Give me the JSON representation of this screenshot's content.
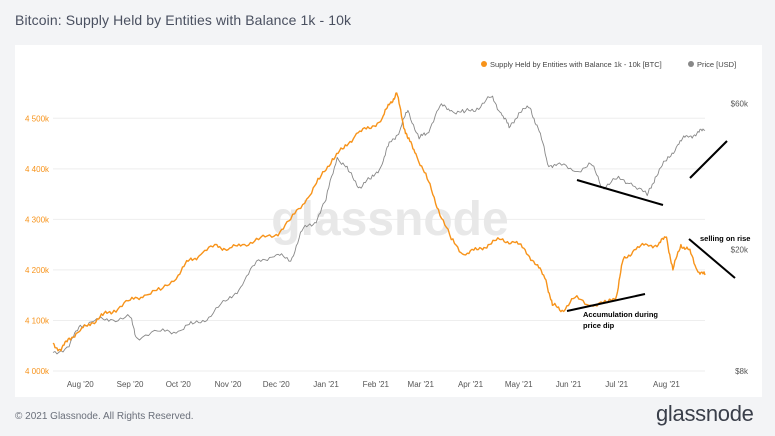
{
  "title": "Bitcoin: Supply Held by Entities with Balance 1k - 10k",
  "footer": "© 2021 Glassnode. All Rights Reserved.",
  "brand": "glassnode",
  "watermark": "glassnode",
  "colors": {
    "supply": "#f7931a",
    "price": "#888888",
    "grid": "#eeeeee",
    "annotation": "#000000"
  },
  "chart_data": {
    "type": "line",
    "title": "Bitcoin: Supply Held by Entities with Balance 1k - 10k",
    "legend_position": "top-right",
    "x_ticks": [
      "Aug '20",
      "Sep '20",
      "Oct '20",
      "Nov '20",
      "Dec '20",
      "Jan '21",
      "Feb '21",
      "Mar '21",
      "Apr '21",
      "May '21",
      "Jun '21",
      "Jul '21",
      "Aug '21"
    ],
    "x_range": [
      "2020-07-15",
      "2021-08-25"
    ],
    "y_left": {
      "label": "",
      "ticks": [
        "4 000k",
        "4 100k",
        "4 200k",
        "4 300k",
        "4 400k",
        "4 500k"
      ],
      "range": [
        4000000,
        4550000
      ]
    },
    "y_right": {
      "label": "",
      "scale": "log",
      "ticks": [
        "$8k",
        "$20k",
        "$60k"
      ],
      "range": [
        8000,
        65000
      ]
    },
    "grid": true,
    "series": [
      {
        "name": "Supply Held by Entities with Balance 1k - 10k [BTC]",
        "axis": "left",
        "x": [
          "2020-07-15",
          "2020-07-20",
          "2020-07-25",
          "2020-08-01",
          "2020-08-08",
          "2020-08-15",
          "2020-08-22",
          "2020-09-01",
          "2020-09-10",
          "2020-09-20",
          "2020-10-01",
          "2020-10-08",
          "2020-10-15",
          "2020-10-25",
          "2020-11-01",
          "2020-11-10",
          "2020-11-20",
          "2020-12-01",
          "2020-12-10",
          "2020-12-20",
          "2020-12-28",
          "2021-01-05",
          "2021-01-12",
          "2021-01-20",
          "2021-01-28",
          "2021-02-05",
          "2021-02-10",
          "2021-02-14",
          "2021-02-18",
          "2021-02-21",
          "2021-02-26",
          "2021-03-05",
          "2021-03-12",
          "2021-03-20",
          "2021-03-28",
          "2021-04-05",
          "2021-04-12",
          "2021-04-20",
          "2021-04-28",
          "2021-05-05",
          "2021-05-12",
          "2021-05-18",
          "2021-05-22",
          "2021-05-28",
          "2021-06-05",
          "2021-06-15",
          "2021-06-25",
          "2021-07-01",
          "2021-07-05",
          "2021-07-12",
          "2021-07-20",
          "2021-07-27",
          "2021-08-01",
          "2021-08-05",
          "2021-08-10",
          "2021-08-15",
          "2021-08-20",
          "2021-08-25"
        ],
        "y": [
          4055000,
          4040000,
          4065000,
          4080000,
          4095000,
          4110000,
          4120000,
          4140000,
          4150000,
          4160000,
          4190000,
          4220000,
          4230000,
          4250000,
          4240000,
          4250000,
          4260000,
          4270000,
          4300000,
          4340000,
          4380000,
          4420000,
          4440000,
          4470000,
          4480000,
          4500000,
          4530000,
          4550000,
          4490000,
          4460000,
          4430000,
          4380000,
          4320000,
          4260000,
          4230000,
          4240000,
          4250000,
          4260000,
          4255000,
          4240000,
          4210000,
          4180000,
          4130000,
          4120000,
          4145000,
          4130000,
          4135000,
          4150000,
          4220000,
          4240000,
          4250000,
          4250000,
          4265000,
          4200000,
          4250000,
          4240000,
          4200000,
          4190000
        ]
      },
      {
        "name": "Price [USD]",
        "axis": "right",
        "x": [
          "2020-07-15",
          "2020-07-25",
          "2020-08-01",
          "2020-08-10",
          "2020-08-20",
          "2020-09-01",
          "2020-09-05",
          "2020-09-20",
          "2020-10-01",
          "2020-10-10",
          "2020-10-20",
          "2020-11-01",
          "2020-11-10",
          "2020-11-20",
          "2020-12-01",
          "2020-12-10",
          "2020-12-17",
          "2020-12-25",
          "2021-01-01",
          "2021-01-08",
          "2021-01-15",
          "2021-01-22",
          "2021-01-29",
          "2021-02-05",
          "2021-02-10",
          "2021-02-16",
          "2021-02-21",
          "2021-02-28",
          "2021-03-05",
          "2021-03-13",
          "2021-03-20",
          "2021-03-28",
          "2021-04-05",
          "2021-04-14",
          "2021-04-20",
          "2021-04-25",
          "2021-05-01",
          "2021-05-08",
          "2021-05-13",
          "2021-05-19",
          "2021-05-25",
          "2021-06-05",
          "2021-06-15",
          "2021-06-22",
          "2021-07-01",
          "2021-07-10",
          "2021-07-20",
          "2021-07-25",
          "2021-08-01",
          "2021-08-08",
          "2021-08-14",
          "2021-08-20",
          "2021-08-25"
        ],
        "y": [
          9200,
          9600,
          11300,
          11700,
          11800,
          12000,
          10300,
          10800,
          10800,
          11400,
          12000,
          13700,
          15300,
          18500,
          19200,
          18300,
          23000,
          24500,
          29000,
          40000,
          36000,
          32000,
          34000,
          38000,
          45000,
          49000,
          57000,
          46000,
          48000,
          59000,
          57000,
          56000,
          58000,
          63000,
          56000,
          50000,
          56000,
          58000,
          50000,
          38000,
          38000,
          36000,
          38000,
          32000,
          34000,
          33000,
          30000,
          34500,
          39000,
          44000,
          47000,
          48000,
          49000
        ]
      }
    ],
    "annotations": [
      "Accumulation during price dip",
      "selling on rise"
    ]
  }
}
